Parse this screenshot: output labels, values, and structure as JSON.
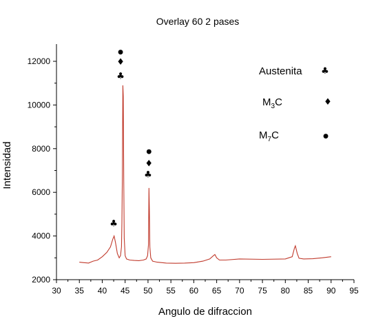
{
  "chart_data": {
    "type": "line",
    "title": "Overlay 60 2 pases",
    "xlabel": "Angulo de difraccion",
    "ylabel": "Intensidad",
    "xlim": [
      30,
      95
    ],
    "ylim": [
      2000,
      12800
    ],
    "xticks": [
      30,
      35,
      40,
      45,
      50,
      55,
      60,
      65,
      70,
      75,
      80,
      85,
      90,
      95
    ],
    "yticks": [
      2000,
      4000,
      6000,
      8000,
      10000,
      12000
    ],
    "grid": false,
    "line_color": "#c0392b",
    "series": [
      {
        "x": [
          35,
          36,
          37,
          38,
          39,
          40,
          41,
          41.8,
          42.3,
          42.6,
          42.9,
          43.3,
          43.7,
          44.0,
          44.2,
          44.3,
          44.4,
          44.5,
          44.6,
          44.7,
          44.8,
          45.0,
          45.3,
          46,
          47,
          48,
          49,
          49.6,
          49.9,
          50.1,
          50.2,
          50.3,
          50.4,
          50.6,
          51,
          52,
          54,
          56,
          58,
          60,
          62,
          63.5,
          64.3,
          64.6,
          65,
          65.6,
          67,
          70,
          75,
          80,
          81.5,
          82.0,
          82.2,
          82.6,
          83,
          84,
          86,
          88,
          90
        ],
        "y": [
          2800,
          2780,
          2760,
          2850,
          2900,
          3050,
          3250,
          3500,
          3850,
          4000,
          3700,
          3200,
          3000,
          3100,
          3500,
          4600,
          6800,
          10900,
          10400,
          6500,
          3900,
          3100,
          2950,
          2900,
          2880,
          2870,
          2900,
          2950,
          3100,
          3600,
          6200,
          5200,
          3500,
          3000,
          2850,
          2800,
          2760,
          2750,
          2760,
          2780,
          2850,
          2950,
          3100,
          3150,
          3000,
          2900,
          2900,
          2950,
          2930,
          2950,
          3050,
          3450,
          3550,
          3200,
          2980,
          2950,
          2960,
          3000,
          3050
        ]
      }
    ],
    "peak_markers": [
      {
        "x": 42.5,
        "y": 4600,
        "symbol": "♣"
      },
      {
        "x": 44.0,
        "y": 11350,
        "symbol": "♣"
      },
      {
        "x": 44.0,
        "y": 12000,
        "symbol": "♦"
      },
      {
        "x": 44.0,
        "y": 12500,
        "symbol": "●"
      },
      {
        "x": 50.0,
        "y": 6850,
        "symbol": "♣"
      },
      {
        "x": 50.2,
        "y": 7350,
        "symbol": "♦"
      },
      {
        "x": 50.2,
        "y": 7950,
        "symbol": "●"
      }
    ],
    "legend": {
      "placement": "top-right",
      "entries": [
        {
          "label": "Austenita",
          "symbol": "♣"
        },
        {
          "label": "M",
          "sub": "3",
          "suffix": "C",
          "symbol": "♦"
        },
        {
          "label": "M",
          "sub": "7",
          "suffix": "C",
          "symbol": "●"
        }
      ]
    }
  }
}
